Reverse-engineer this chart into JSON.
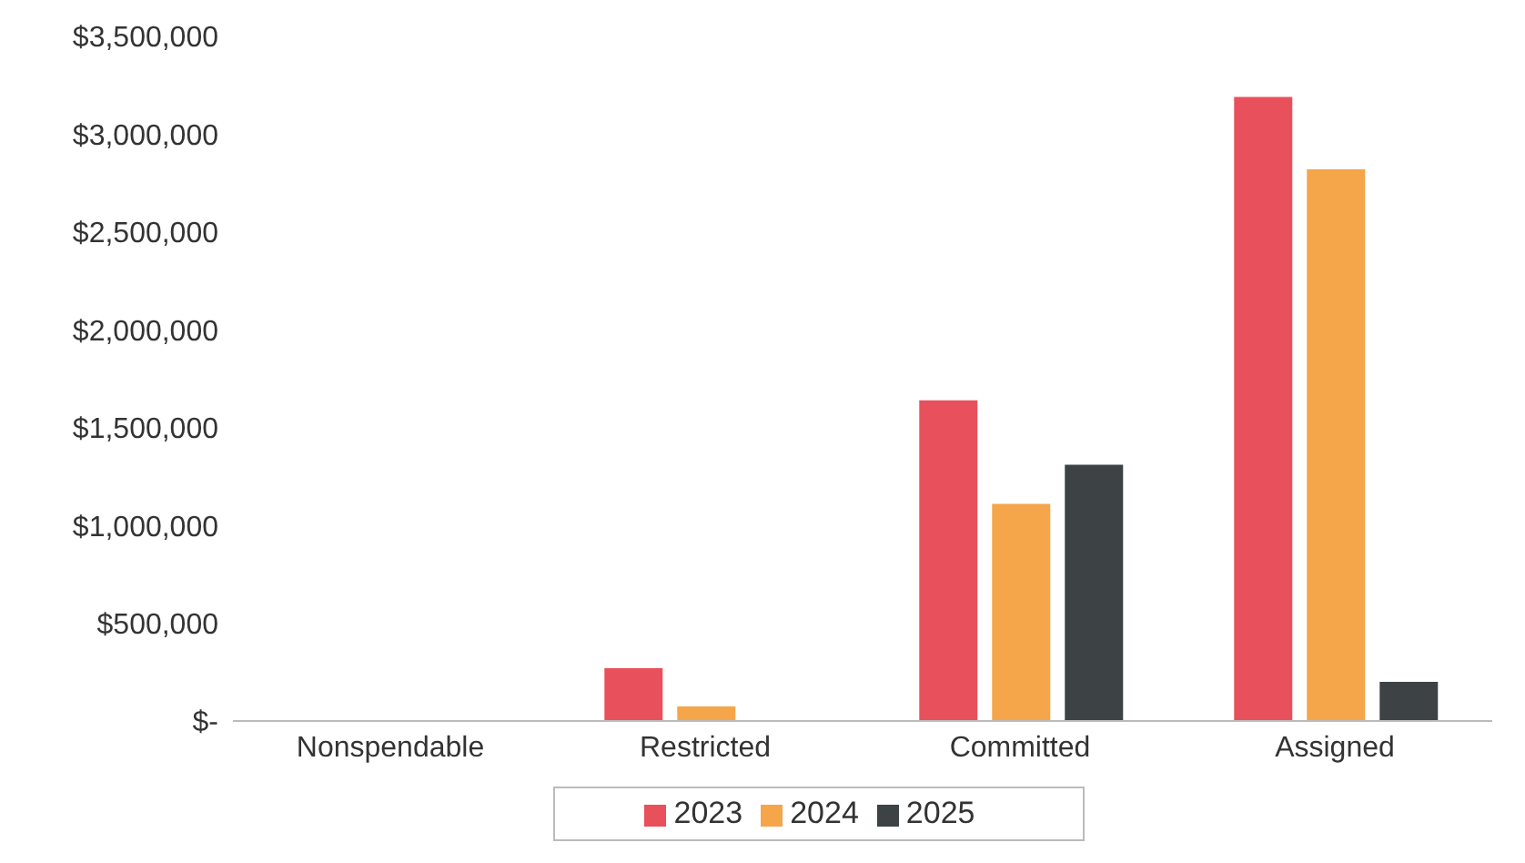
{
  "chart_data": {
    "type": "bar",
    "categories": [
      "Nonspendable",
      "Restricted",
      "Committed",
      "Assigned"
    ],
    "series": [
      {
        "name": "2023",
        "color": "#e8505b",
        "values": [
          0,
          270000,
          1640000,
          3190000
        ]
      },
      {
        "name": "2024",
        "color": "#f5a54a",
        "values": [
          0,
          75000,
          1110000,
          2820000
        ]
      },
      {
        "name": "2025",
        "color": "#3d4244",
        "values": [
          0,
          0,
          1310000,
          200000
        ]
      }
    ],
    "ylim": [
      0,
      3500000
    ],
    "yticks": [
      {
        "value": 0,
        "label": "$-"
      },
      {
        "value": 500000,
        "label": "$500,000"
      },
      {
        "value": 1000000,
        "label": "$1,000,000"
      },
      {
        "value": 1500000,
        "label": "$1,500,000"
      },
      {
        "value": 2000000,
        "label": "$2,000,000"
      },
      {
        "value": 2500000,
        "label": "$2,500,000"
      },
      {
        "value": 3000000,
        "label": "$3,000,000"
      },
      {
        "value": 3500000,
        "label": "$3,500,000"
      }
    ],
    "grid": false,
    "legend": "bottom"
  }
}
